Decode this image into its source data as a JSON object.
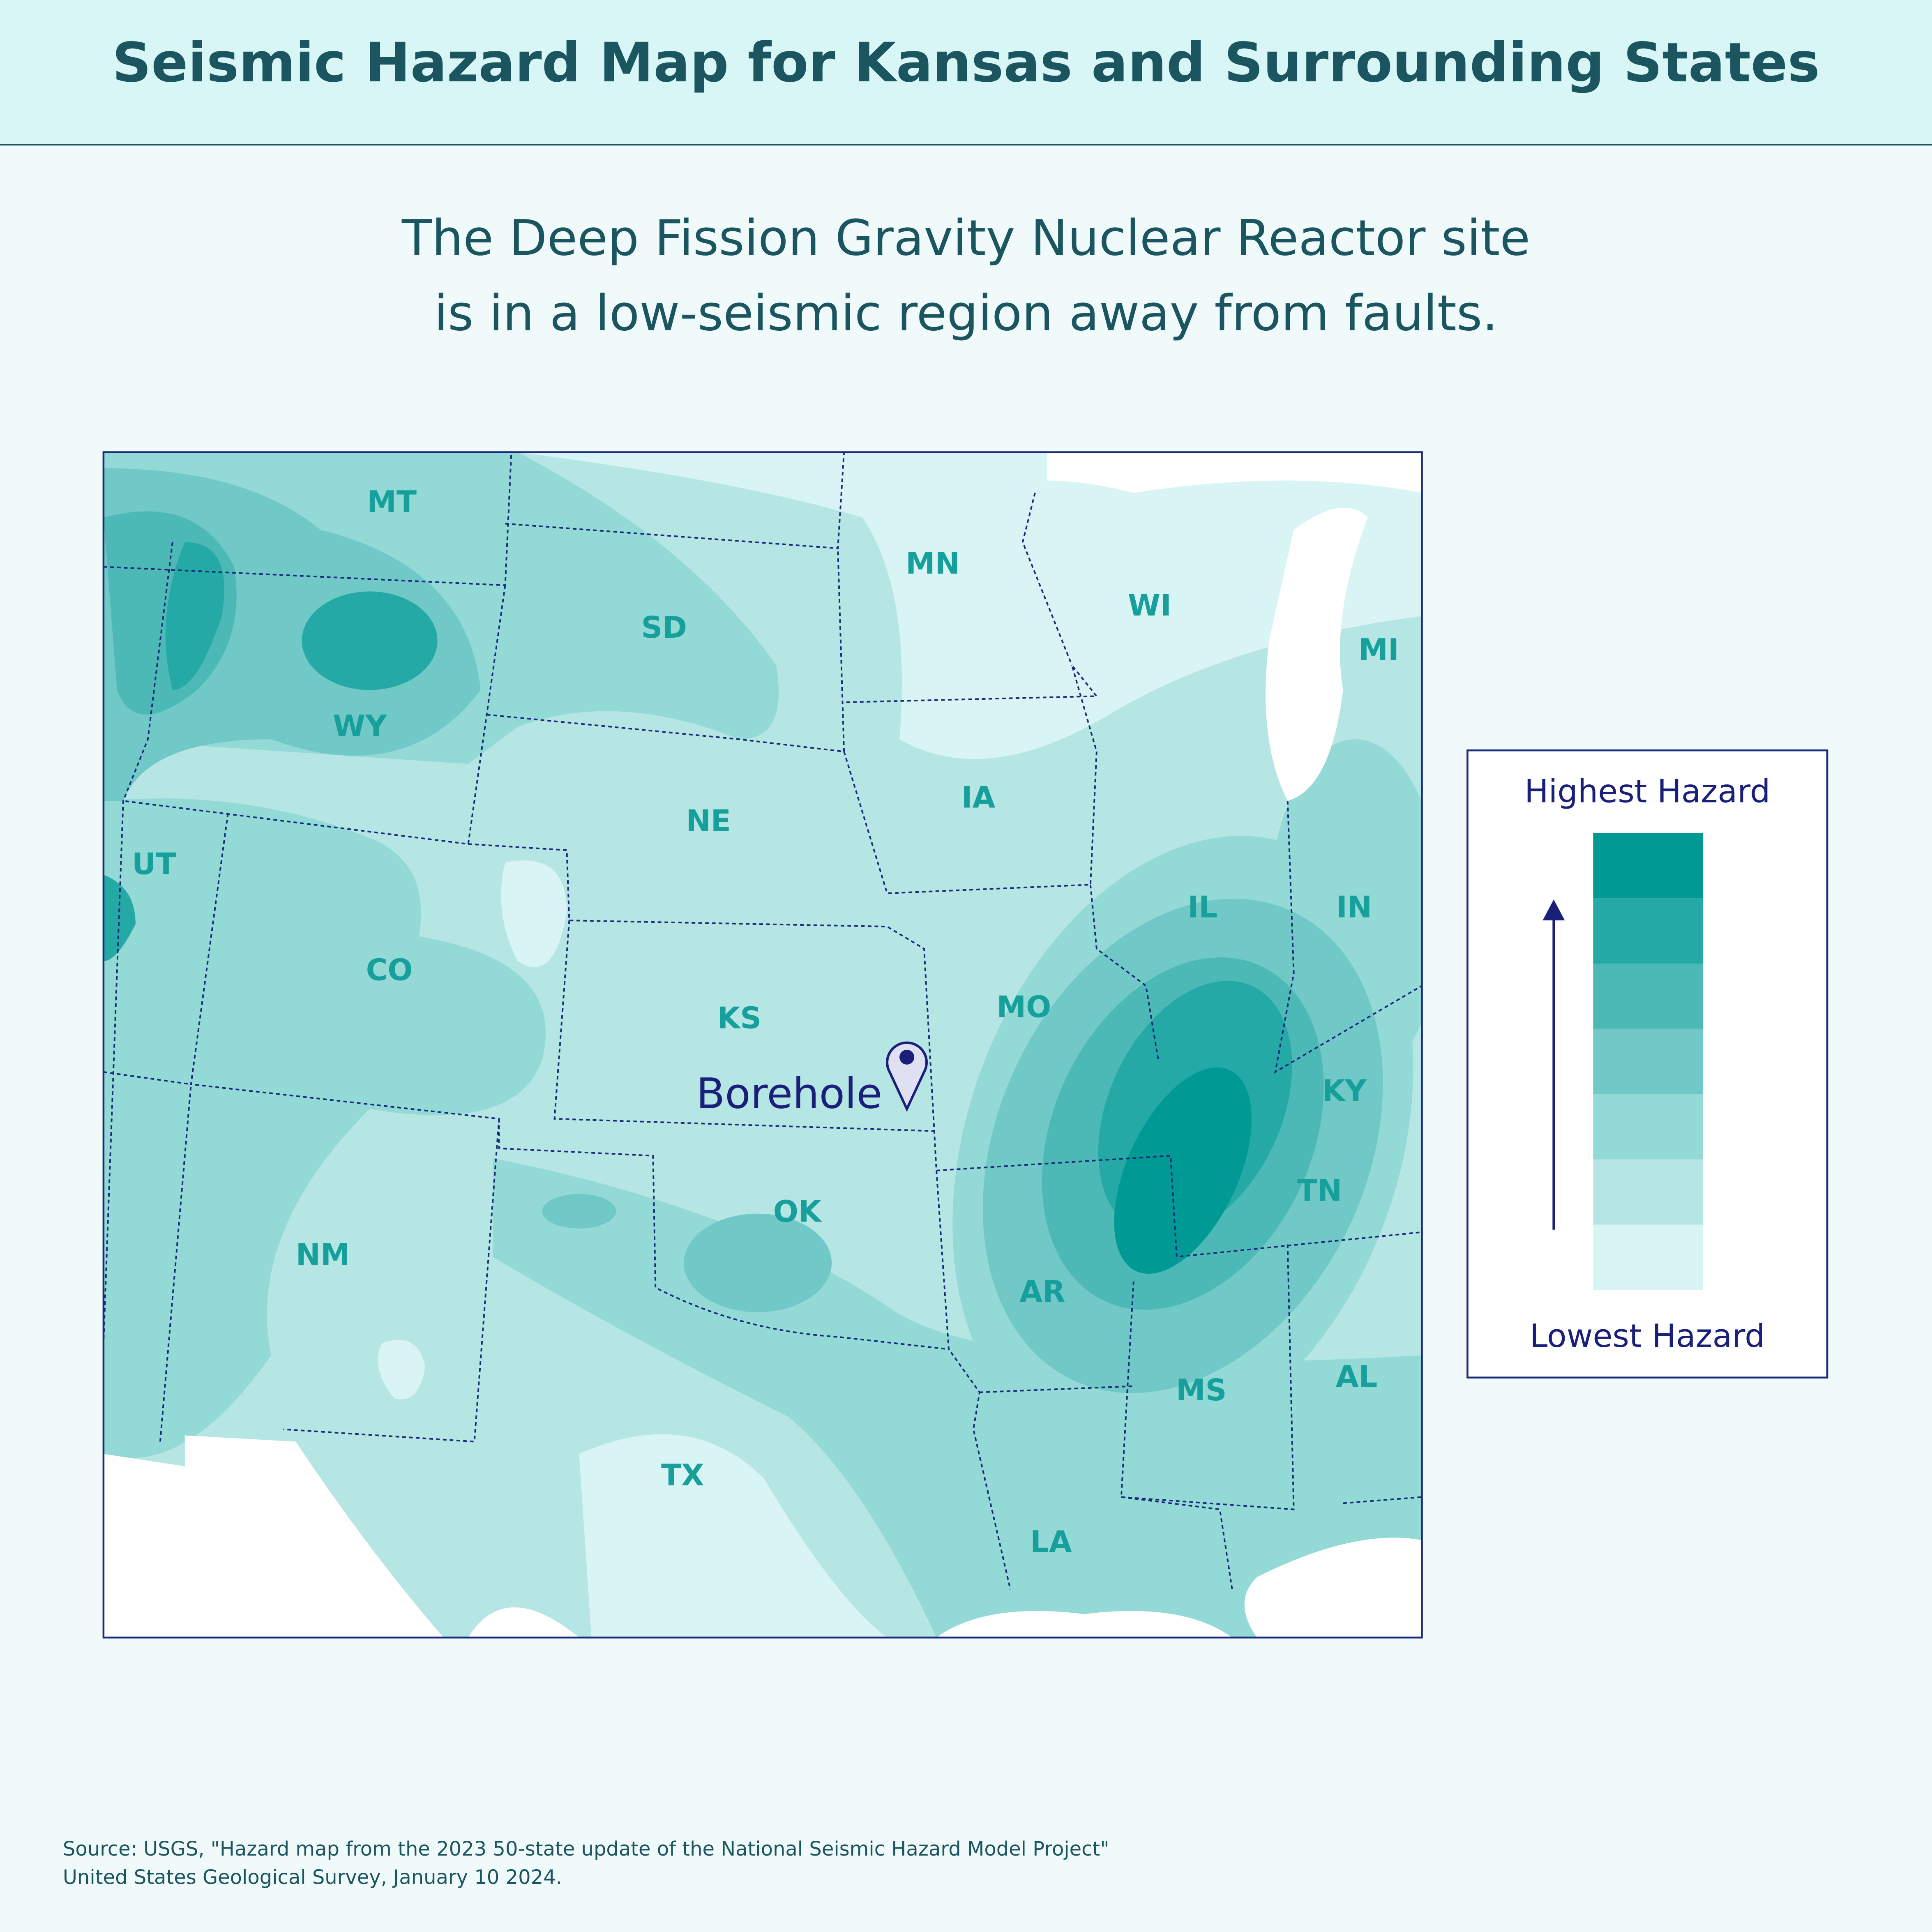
{
  "header": {
    "title": "Seismic Hazard Map for Kansas and Surrounding States"
  },
  "subtitle": [
    "The Deep Fission Gravity Nuclear Reactor site",
    "is in a low-seismic region away from faults."
  ],
  "map": {
    "states": [
      "MT",
      "SD",
      "MN",
      "WI",
      "MI",
      "WY",
      "NE",
      "IA",
      "UT",
      "IL",
      "IN",
      "CO",
      "KS",
      "MO",
      "KY",
      "OK",
      "TN",
      "NM",
      "AR",
      "MS",
      "AL",
      "TX",
      "LA"
    ],
    "marker": {
      "label": "Borehole"
    }
  },
  "legend": {
    "top": "Highest Hazard",
    "bottom": "Lowest Hazard"
  },
  "source": [
    "Source: USGS, \"Hazard map from the 2023 50-state update of the National Seismic Hazard Model Project\"",
    "United States Geological Survey, January 10 2024."
  ]
}
